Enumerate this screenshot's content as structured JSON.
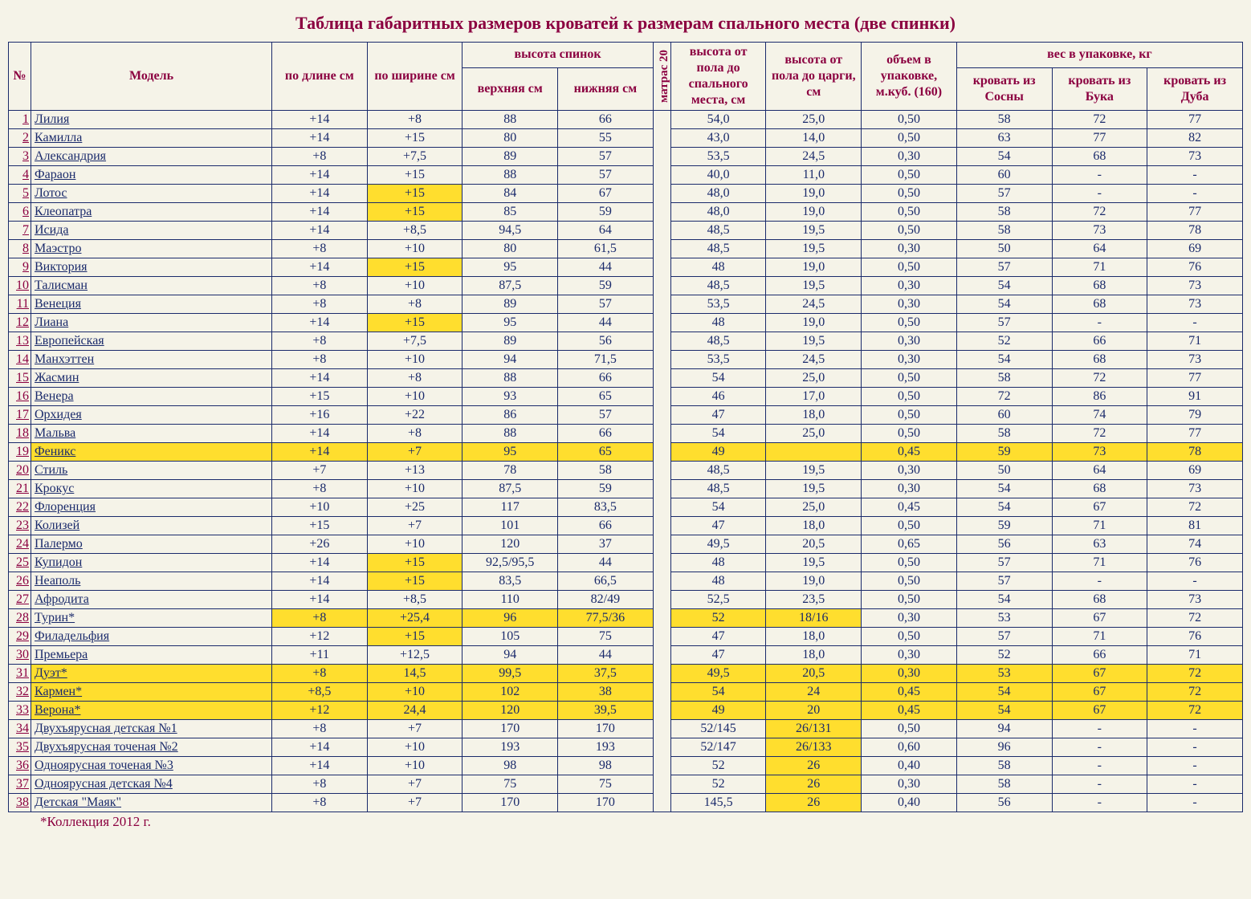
{
  "title": "Таблица габаритных размеров кроватей к размерам спального места (две спинки)",
  "footnote": "*Коллекция 2012 г.",
  "headers": {
    "num": "№",
    "model": "Модель",
    "length": "по длине см",
    "width": "по ширине см",
    "spinki": "высота спинок",
    "upper": "верхняя см",
    "lower": "нижняя см",
    "matras": "матрас 20",
    "floor_sleep": "высота от пола до спального места, см",
    "floor_tsarga": "высота от пола до царги, см",
    "volume": "объем в упаковке, м.куб. (160)",
    "weight": "вес в упаковке, кг",
    "pine": "кровать из Сосны",
    "beech": "кровать из Бука",
    "oak": "кровать из Дуба"
  },
  "colors": {
    "border": "#1a2a6b",
    "header_text": "#8b0040",
    "cell_text": "#1a2a6b",
    "highlight": "#ffde2e",
    "background": "#f5f3e8"
  },
  "rows": [
    {
      "n": "1",
      "m": "Лилия",
      "c": [
        "+14",
        "+8",
        "88",
        "66",
        "54,0",
        "25,0",
        "0,50",
        "58",
        "72",
        "77"
      ],
      "h": []
    },
    {
      "n": "2",
      "m": "Камилла",
      "c": [
        "+14",
        "+15",
        "80",
        "55",
        "43,0",
        "14,0",
        "0,50",
        "63",
        "77",
        "82"
      ],
      "h": []
    },
    {
      "n": "3",
      "m": "Александрия",
      "c": [
        "+8",
        "+7,5",
        "89",
        "57",
        "53,5",
        "24,5",
        "0,30",
        "54",
        "68",
        "73"
      ],
      "h": []
    },
    {
      "n": "4",
      "m": "Фараон",
      "c": [
        "+14",
        "+15",
        "88",
        "57",
        "40,0",
        "11,0",
        "0,50",
        "60",
        "-",
        "-"
      ],
      "h": []
    },
    {
      "n": "5",
      "m": "Лотос",
      "c": [
        "+14",
        "+15",
        "84",
        "67",
        "48,0",
        "19,0",
        "0,50",
        "57",
        "-",
        "-"
      ],
      "h": [
        1
      ]
    },
    {
      "n": "6",
      "m": "Клеопатра",
      "c": [
        "+14",
        "+15",
        "85",
        "59",
        "48,0",
        "19,0",
        "0,50",
        "58",
        "72",
        "77"
      ],
      "h": [
        1
      ]
    },
    {
      "n": "7",
      "m": "Исида",
      "c": [
        "+14",
        "+8,5",
        "94,5",
        "64",
        "48,5",
        "19,5",
        "0,50",
        "58",
        "73",
        "78"
      ],
      "h": []
    },
    {
      "n": "8",
      "m": "Маэстро",
      "c": [
        "+8",
        "+10",
        "80",
        "61,5",
        "48,5",
        "19,5",
        "0,30",
        "50",
        "64",
        "69"
      ],
      "h": []
    },
    {
      "n": "9",
      "m": "Виктория",
      "c": [
        "+14",
        "+15",
        "95",
        "44",
        "48",
        "19,0",
        "0,50",
        "57",
        "71",
        "76"
      ],
      "h": [
        1
      ]
    },
    {
      "n": "10",
      "m": "Талисман",
      "c": [
        "+8",
        "+10",
        "87,5",
        "59",
        "48,5",
        "19,5",
        "0,30",
        "54",
        "68",
        "73"
      ],
      "h": []
    },
    {
      "n": "11",
      "m": "Венеция",
      "c": [
        "+8",
        "+8",
        "89",
        "57",
        "53,5",
        "24,5",
        "0,30",
        "54",
        "68",
        "73"
      ],
      "h": []
    },
    {
      "n": "12",
      "m": "Лиана",
      "c": [
        "+14",
        "+15",
        "95",
        "44",
        "48",
        "19,0",
        "0,50",
        "57",
        "-",
        "-"
      ],
      "h": [
        1
      ]
    },
    {
      "n": "13",
      "m": "Европейская",
      "c": [
        "+8",
        "+7,5",
        "89",
        "56",
        "48,5",
        "19,5",
        "0,30",
        "52",
        "66",
        "71"
      ],
      "h": []
    },
    {
      "n": "14",
      "m": "Манхэттен",
      "c": [
        "+8",
        "+10",
        "94",
        "71,5",
        "53,5",
        "24,5",
        "0,30",
        "54",
        "68",
        "73"
      ],
      "h": []
    },
    {
      "n": "15",
      "m": "Жасмин",
      "c": [
        "+14",
        "+8",
        "88",
        "66",
        "54",
        "25,0",
        "0,50",
        "58",
        "72",
        "77"
      ],
      "h": []
    },
    {
      "n": "16",
      "m": "Венера",
      "c": [
        "+15",
        "+10",
        "93",
        "65",
        "46",
        "17,0",
        "0,50",
        "72",
        "86",
        "91"
      ],
      "h": []
    },
    {
      "n": "17",
      "m": "Орхидея",
      "c": [
        "+16",
        "+22",
        "86",
        "57",
        "47",
        "18,0",
        "0,50",
        "60",
        "74",
        "79"
      ],
      "h": []
    },
    {
      "n": "18",
      "m": "Мальва",
      "c": [
        "+14",
        "+8",
        "88",
        "66",
        "54",
        "25,0",
        "0,50",
        "58",
        "72",
        "77"
      ],
      "h": []
    },
    {
      "n": "19",
      "m": "Феникс",
      "c": [
        "+14",
        "+7",
        "95",
        "65",
        "49",
        "",
        "0,45",
        "59",
        "73",
        "78"
      ],
      "h": [
        "row"
      ]
    },
    {
      "n": "20",
      "m": "Стиль",
      "c": [
        "+7",
        "+13",
        "78",
        "58",
        "48,5",
        "19,5",
        "0,30",
        "50",
        "64",
        "69"
      ],
      "h": []
    },
    {
      "n": "21",
      "m": "Крокус",
      "c": [
        "+8",
        "+10",
        "87,5",
        "59",
        "48,5",
        "19,5",
        "0,30",
        "54",
        "68",
        "73"
      ],
      "h": []
    },
    {
      "n": "22",
      "m": "Флоренция",
      "c": [
        "+10",
        "+25",
        "117",
        "83,5",
        "54",
        "25,0",
        "0,45",
        "54",
        "67",
        "72"
      ],
      "h": []
    },
    {
      "n": "23",
      "m": "Колизей",
      "c": [
        "+15",
        "+7",
        "101",
        "66",
        "47",
        "18,0",
        "0,50",
        "59",
        "71",
        "81"
      ],
      "h": []
    },
    {
      "n": "24",
      "m": "Палермо",
      "c": [
        "+26",
        "+10",
        "120",
        "37",
        "49,5",
        "20,5",
        "0,65",
        "56",
        "63",
        "74"
      ],
      "h": []
    },
    {
      "n": "25",
      "m": "Купидон",
      "c": [
        "+14",
        "+15",
        "92,5/95,5",
        "44",
        "48",
        "19,5",
        "0,50",
        "57",
        "71",
        "76"
      ],
      "h": [
        1
      ]
    },
    {
      "n": "26",
      "m": "Неаполь",
      "c": [
        "+14",
        "+15",
        "83,5",
        "66,5",
        "48",
        "19,0",
        "0,50",
        "57",
        "-",
        "-"
      ],
      "h": [
        1
      ]
    },
    {
      "n": "27",
      "m": "Афродита",
      "c": [
        "+14",
        "+8,5",
        "110",
        "82/49",
        "52,5",
        "23,5",
        "0,50",
        "54",
        "68",
        "73"
      ],
      "h": []
    },
    {
      "n": "28",
      "m": "Турин*",
      "c": [
        "+8",
        "+25,4",
        "96",
        "77,5/36",
        "52",
        "18/16",
        "0,30",
        "53",
        "67",
        "72"
      ],
      "h": [
        0,
        1,
        2,
        3,
        4,
        5
      ]
    },
    {
      "n": "29",
      "m": "Филадельфия",
      "c": [
        "+12",
        "+15",
        "105",
        "75",
        "47",
        "18,0",
        "0,50",
        "57",
        "71",
        "76"
      ],
      "h": [
        1
      ]
    },
    {
      "n": "30",
      "m": "Премьера",
      "c": [
        "+11",
        "+12,5",
        "94",
        "44",
        "47",
        "18,0",
        "0,30",
        "52",
        "66",
        "71"
      ],
      "h": []
    },
    {
      "n": "31",
      "m": "Дуэт*",
      "c": [
        "+8",
        "14,5",
        "99,5",
        "37,5",
        "49,5",
        "20,5",
        "0,30",
        "53",
        "67",
        "72"
      ],
      "h": [
        "row"
      ]
    },
    {
      "n": "32",
      "m": "Кармен*",
      "c": [
        "+8,5",
        "+10",
        "102",
        "38",
        "54",
        "24",
        "0,45",
        "54",
        "67",
        "72"
      ],
      "h": [
        "row"
      ]
    },
    {
      "n": "33",
      "m": "Верона*",
      "c": [
        "+12",
        "24,4",
        "120",
        "39,5",
        "49",
        "20",
        "0,45",
        "54",
        "67",
        "72"
      ],
      "h": [
        "row"
      ]
    },
    {
      "n": "34",
      "m": "Двухъярусная детская №1",
      "c": [
        "+8",
        "+7",
        "170",
        "170",
        "52/145",
        "26/131",
        "0,50",
        "94",
        "-",
        "-"
      ],
      "h": [
        5
      ]
    },
    {
      "n": "35",
      "m": "Двухъярусная точеная №2",
      "c": [
        "+14",
        "+10",
        "193",
        "193",
        "52/147",
        "26/133",
        "0,60",
        "96",
        "-",
        "-"
      ],
      "h": [
        5
      ]
    },
    {
      "n": "36",
      "m": "Одноярусная точеная №3",
      "c": [
        "+14",
        "+10",
        "98",
        "98",
        "52",
        "26",
        "0,40",
        "58",
        "-",
        "-"
      ],
      "h": [
        5
      ]
    },
    {
      "n": "37",
      "m": "Одноярусная детская №4",
      "c": [
        "+8",
        "+7",
        "75",
        "75",
        "52",
        "26",
        "0,30",
        "58",
        "-",
        "-"
      ],
      "h": [
        5
      ]
    },
    {
      "n": "38",
      "m": "Детская \"Маяк\"",
      "c": [
        "+8",
        "+7",
        "170",
        "170",
        "145,5",
        "26",
        "0,40",
        "56",
        "-",
        "-"
      ],
      "h": [
        5
      ]
    }
  ]
}
